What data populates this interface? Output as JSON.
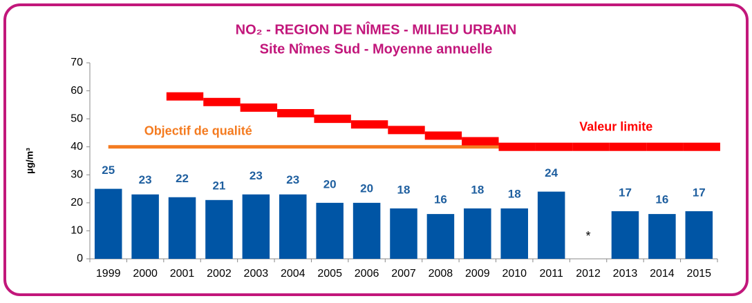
{
  "chart_data": {
    "type": "bar",
    "title": "NO₂ - REGION DE NÎMES - MILIEU URBAIN",
    "subtitle": "Site Nîmes Sud - Moyenne annuelle",
    "y_label": "µg/m³",
    "categories": [
      "1999",
      "2000",
      "2001",
      "2002",
      "2003",
      "2004",
      "2005",
      "2006",
      "2007",
      "2008",
      "2009",
      "2010",
      "2011",
      "2012",
      "2013",
      "2014",
      "2015"
    ],
    "values": [
      25,
      23,
      22,
      21,
      23,
      23,
      20,
      20,
      18,
      16,
      18,
      18,
      24,
      null,
      17,
      16,
      17
    ],
    "color": "#0055a5",
    "label_color": "#1f5f9f",
    "lines": [
      {
        "name": "Objectif de qualité",
        "color": "#f47b20",
        "style": "line",
        "values": [
          40,
          40,
          40,
          40,
          40,
          40,
          40,
          40,
          40,
          40,
          40,
          40,
          null,
          null,
          null,
          null,
          null
        ]
      },
      {
        "name": "Valeur limite",
        "color": "#ff0000",
        "style": "steps",
        "values": [
          null,
          null,
          58,
          56,
          54,
          52,
          50,
          48,
          46,
          44,
          42,
          40,
          40,
          40,
          40,
          40,
          40
        ]
      }
    ],
    "annotations": [
      {
        "text": "*",
        "x": "2012"
      }
    ],
    "ylim": [
      0,
      70
    ],
    "yticks": [
      0,
      10,
      20,
      30,
      40,
      50,
      60,
      70
    ],
    "grid": false
  }
}
